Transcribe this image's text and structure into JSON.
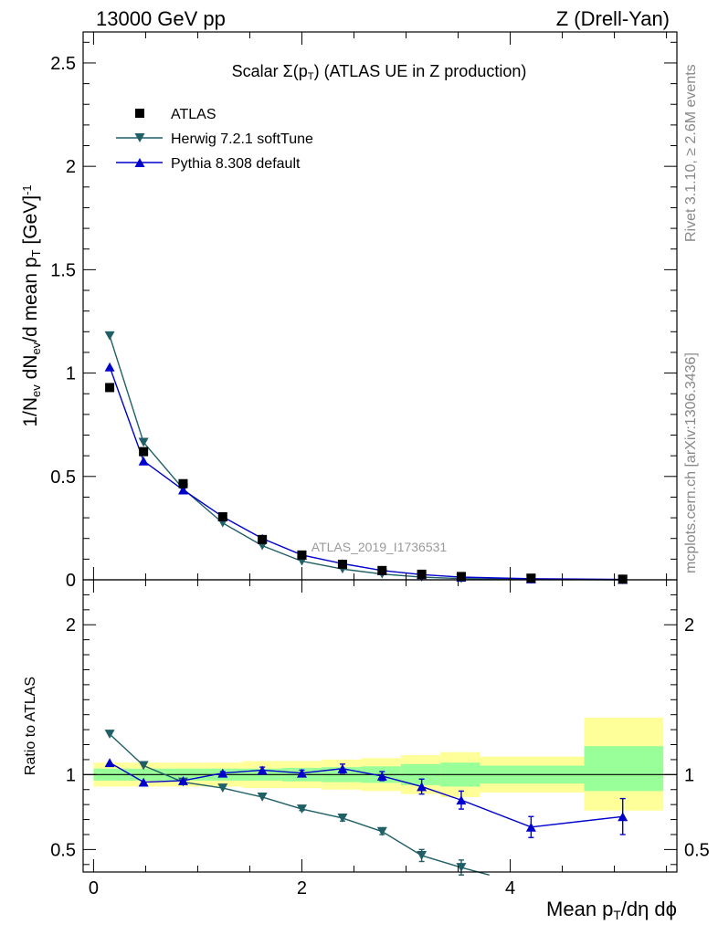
{
  "header": {
    "left": "13000 GeV pp",
    "right": "Z (Drell-Yan)"
  },
  "side_text": {
    "rivet": "Rivet 3.1.10, ≥ 2.6M events",
    "mcplots": "mcplots.cern.ch [arXiv:1306.3436]"
  },
  "watermark": "ATLAS_2019_I1736531",
  "colors": {
    "atlas": "#000000",
    "herwig": "#1f5f66",
    "pythia": "#0000cc",
    "band_outer": "#ffff99",
    "band_inner": "#99ff99"
  },
  "chart_data": [
    {
      "type": "scatter",
      "title_parts": [
        "Scalar Σ(p",
        "T",
        ") (ATLAS UE in Z production)"
      ],
      "ylabel_parts": [
        "1/N",
        "ev",
        " dN",
        "ev",
        "/d mean p",
        "T",
        " [GeV]",
        "-1"
      ],
      "ylim": [
        0,
        2.65
      ],
      "xlim": [
        -0.1,
        5.6
      ],
      "yticks": [
        {
          "v": 0,
          "label": "0"
        },
        {
          "v": 0.5,
          "label": "0.5"
        },
        {
          "v": 1,
          "label": "1"
        },
        {
          "v": 1.5,
          "label": "1.5"
        },
        {
          "v": 2,
          "label": "2"
        },
        {
          "v": 2.5,
          "label": "2.5"
        }
      ],
      "x": [
        0.155,
        0.48,
        0.86,
        1.24,
        1.62,
        2.0,
        2.39,
        2.77,
        3.15,
        3.53,
        4.2,
        5.08
      ],
      "series": [
        {
          "name": "ATLAS",
          "values": [
            0.93,
            0.62,
            0.465,
            0.305,
            0.195,
            0.12,
            0.075,
            0.045,
            0.027,
            0.016,
            0.008,
            0.003
          ]
        },
        {
          "name": "Herwig 7.2.1 softTune",
          "values": [
            1.18,
            0.665,
            0.44,
            0.275,
            0.165,
            0.09,
            0.052,
            0.028,
            0.013,
            0.006,
            0.002,
            0.0
          ]
        },
        {
          "name": "Pythia 8.308 default",
          "values": [
            1.03,
            0.575,
            0.435,
            0.305,
            0.2,
            0.12,
            0.078,
            0.045,
            0.025,
            0.013,
            0.005,
            0.002
          ]
        }
      ]
    },
    {
      "type": "line",
      "ylabel": "Ratio to ATLAS",
      "ylim": [
        0.35,
        2.3
      ],
      "xlim": [
        -0.1,
        5.6
      ],
      "yticks": [
        {
          "v": 0.5,
          "label": "0.5"
        },
        {
          "v": 1,
          "label": "1"
        },
        {
          "v": 2,
          "label": "2"
        }
      ],
      "xticks": [
        {
          "v": 0,
          "label": "0"
        },
        {
          "v": 2,
          "label": "2"
        },
        {
          "v": 4,
          "label": "4"
        }
      ],
      "xlabel_parts": [
        "Mean p",
        "T",
        "/dη dϕ"
      ],
      "band_edges": [
        0.0,
        0.33,
        0.67,
        1.05,
        1.43,
        1.81,
        2.19,
        2.57,
        2.95,
        3.33,
        3.71,
        4.71,
        5.47
      ],
      "band_outer": [
        [
          0.92,
          1.08
        ],
        [
          0.92,
          1.08
        ],
        [
          0.92,
          1.08
        ],
        [
          0.92,
          1.08
        ],
        [
          0.91,
          1.09
        ],
        [
          0.91,
          1.09
        ],
        [
          0.9,
          1.1
        ],
        [
          0.89,
          1.11
        ],
        [
          0.87,
          1.13
        ],
        [
          0.85,
          1.15
        ],
        [
          0.88,
          1.12
        ],
        [
          0.76,
          1.38
        ]
      ],
      "band_inner": [
        [
          0.96,
          1.04
        ],
        [
          0.96,
          1.04
        ],
        [
          0.96,
          1.04
        ],
        [
          0.96,
          1.04
        ],
        [
          0.96,
          1.04
        ],
        [
          0.955,
          1.045
        ],
        [
          0.95,
          1.05
        ],
        [
          0.945,
          1.055
        ],
        [
          0.93,
          1.07
        ],
        [
          0.92,
          1.08
        ],
        [
          0.94,
          1.06
        ],
        [
          0.89,
          1.19
        ]
      ],
      "series": [
        {
          "name": "Herwig 7.2.1 softTune",
          "x": [
            0.155,
            0.48,
            0.86,
            1.24,
            1.62,
            2.0,
            2.39,
            2.77,
            3.15,
            3.53,
            3.8
          ],
          "values": [
            1.27,
            1.06,
            0.95,
            0.91,
            0.85,
            0.77,
            0.71,
            0.62,
            0.46,
            0.38,
            0.33
          ],
          "errors": [
            0.0,
            0.0,
            0.0,
            0.0,
            0.0,
            0.01,
            0.02,
            0.02,
            0.04,
            0.05,
            0.0
          ],
          "markers": [
            true,
            true,
            true,
            true,
            true,
            true,
            true,
            true,
            true,
            true,
            false
          ]
        },
        {
          "name": "Pythia 8.308 default",
          "x": [
            0.155,
            0.48,
            0.86,
            1.24,
            1.62,
            2.0,
            2.39,
            2.77,
            3.15,
            3.53,
            4.2,
            5.08
          ],
          "values": [
            1.08,
            0.95,
            0.96,
            1.01,
            1.03,
            1.01,
            1.04,
            0.99,
            0.92,
            0.83,
            0.65,
            0.72
          ],
          "errors": [
            0.0,
            0.0,
            0.0,
            0.01,
            0.02,
            0.02,
            0.03,
            0.03,
            0.05,
            0.06,
            0.07,
            0.12
          ],
          "markers": [
            true,
            true,
            true,
            true,
            true,
            true,
            true,
            true,
            true,
            true,
            true,
            true
          ]
        }
      ]
    }
  ]
}
